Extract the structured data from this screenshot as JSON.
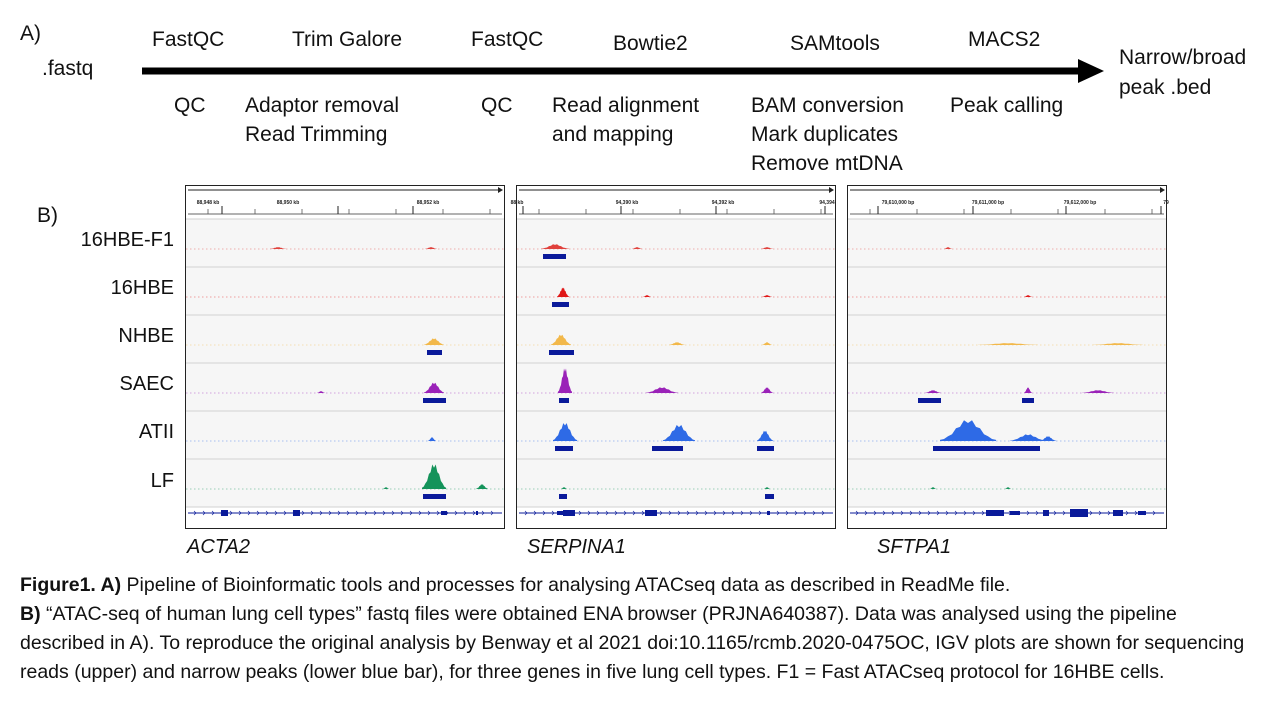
{
  "panel_a": {
    "label": "A)",
    "input": ".fastq",
    "output": [
      "Narrow/broad",
      "peak .bed"
    ],
    "steps": [
      {
        "tool": "FastQC",
        "process": [
          "QC"
        ]
      },
      {
        "tool": "Trim Galore",
        "process": [
          "Adaptor removal",
          "Read Trimming"
        ]
      },
      {
        "tool": "FastQC",
        "process": [
          "QC"
        ]
      },
      {
        "tool": "Bowtie2",
        "process": [
          "Read alignment",
          "and mapping"
        ]
      },
      {
        "tool": "SAMtools",
        "process": [
          "BAM conversion",
          "Mark duplicates",
          "Remove mtDNA"
        ]
      },
      {
        "tool": "MACS2",
        "process": [
          "Peak calling"
        ]
      }
    ]
  },
  "panel_b": {
    "label": "B)",
    "cell_types": [
      "16HBE-F1",
      "16HBE",
      "NHBE",
      "SAEC",
      "ATII",
      "LF"
    ],
    "track_colors": [
      "#e0413c",
      "#e01818",
      "#f2b84a",
      "#9a22b8",
      "#2e6ae6",
      "#14935a"
    ],
    "peak_color": "#0a1a9a",
    "genes": [
      {
        "name": "ACTA2",
        "ticks": [
          "88,948 kb",
          "88,950 kb",
          "88,952 kb"
        ]
      },
      {
        "name": "SERPINA1",
        "ticks": [
          "88 kb",
          "94,390 kb",
          "94,392 kb",
          "94,394"
        ]
      },
      {
        "name": "SFTPA1",
        "ticks": [
          "79,610,000 bp",
          "79,611,000 bp",
          "79,612,000 bp",
          "79"
        ]
      }
    ]
  },
  "caption": {
    "fig_label": "Figure1. A)",
    "part_a": " Pipeline of Bioinformatic tools and processes for analysing ATACseq data as described in ReadMe file.",
    "b_label": "B)",
    "part_b": " “ATAC-seq of human lung cell types” fastq files were obtained ENA browser (PRJNA640387). Data was analysed using the pipeline described in A). To reproduce the original analysis by Benway et al 2021 doi:10.1165/rcmb.2020-0475OC, IGV plots are shown for sequencing reads (upper) and narrow peaks (lower blue bar), for three genes in five lung cell types. F1 = Fast ATACseq protocol for 16HBE cells."
  }
}
